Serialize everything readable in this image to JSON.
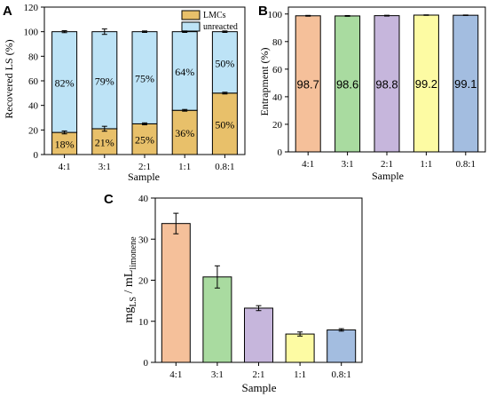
{
  "colors": {
    "lmc": "#e8c06a",
    "unreacted": "#bde3f6",
    "orange": "#f5c09a",
    "green": "#a9dba0",
    "purple": "#c6b6dc",
    "yellow": "#fdfba3",
    "blue": "#a3bde0"
  },
  "chart_data": [
    {
      "panel": "A",
      "type": "bar",
      "stacked": true,
      "categories": [
        "4:1",
        "3:1",
        "2:1",
        "1:1",
        "0.8:1"
      ],
      "series": [
        {
          "name": "LMCs",
          "values": [
            18,
            21,
            25,
            36,
            50
          ],
          "errors": [
            1.2,
            2.0,
            0.8,
            0.7,
            0.7
          ],
          "labels": [
            "18%",
            "21%",
            "25%",
            "36%",
            "50%"
          ]
        },
        {
          "name": "unreacted",
          "values": [
            82,
            79,
            75,
            64,
            50
          ],
          "errors": [
            0.8,
            2.2,
            0.6,
            0.6,
            0.6
          ],
          "labels": [
            "82%",
            "79%",
            "75%",
            "64%",
            "50%"
          ]
        }
      ],
      "xlabel": "Sample",
      "ylabel": "Recovered LS (%)",
      "ylim": [
        0,
        120
      ],
      "yticks": [
        0,
        20,
        40,
        60,
        80,
        100,
        120
      ],
      "legend": "top-right"
    },
    {
      "panel": "B",
      "type": "bar",
      "categories": [
        "4:1",
        "3:1",
        "2:1",
        "1:1",
        "0.8:1"
      ],
      "values": [
        98.7,
        98.6,
        98.8,
        99.2,
        99.1
      ],
      "errors": [
        0.3,
        0.3,
        0.3,
        0.2,
        0.2
      ],
      "labels": [
        "98.7",
        "98.6",
        "98.8",
        "99.2",
        "99.1"
      ],
      "xlabel": "Sample",
      "ylabel": "Entrapment (%)",
      "ylim": [
        0,
        105
      ],
      "yticks": [
        0,
        20,
        40,
        60,
        80,
        100
      ]
    },
    {
      "panel": "C",
      "type": "bar",
      "categories": [
        "4:1",
        "3:1",
        "2:1",
        "1:1",
        "0.8:1"
      ],
      "values": [
        33.8,
        20.8,
        13.2,
        6.9,
        7.9
      ],
      "errors": [
        2.5,
        2.7,
        0.6,
        0.5,
        0.3
      ],
      "xlabel": "Sample",
      "ylabel_parts": [
        "mg",
        "LS",
        " / mL",
        "limonene"
      ],
      "ylim": [
        0,
        40
      ],
      "yticks": [
        0,
        10,
        20,
        30,
        40
      ]
    }
  ]
}
